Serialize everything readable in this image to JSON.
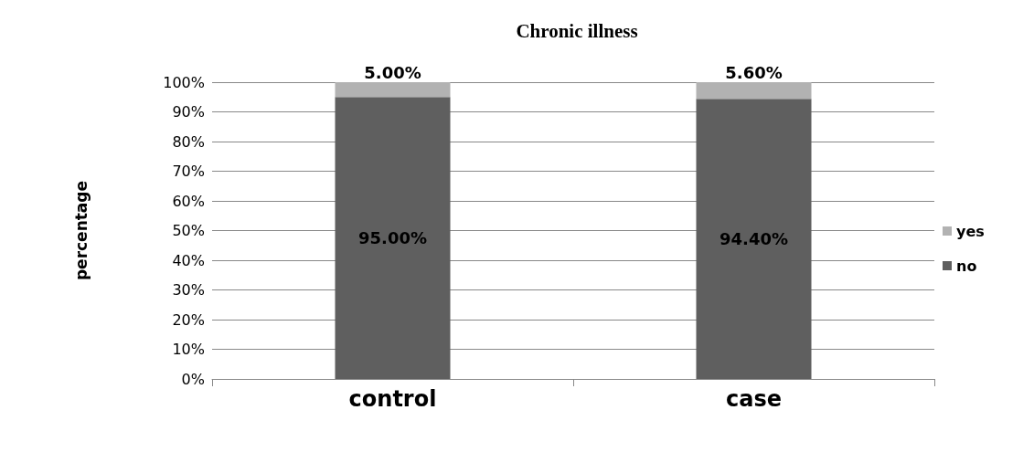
{
  "chart_data": {
    "type": "bar",
    "title": "Chronic illness",
    "ylabel": "percentage",
    "categories": [
      "control",
      "case"
    ],
    "stacked": true,
    "series": [
      {
        "name": "no",
        "color": "#5f5f5f",
        "values": [
          95.0,
          94.4
        ],
        "value_labels": [
          "95.00%",
          "94.40%"
        ]
      },
      {
        "name": "yes",
        "color": "#b2b2b2",
        "values": [
          5.0,
          5.6
        ],
        "value_labels": [
          "5.00%",
          "5.60%"
        ]
      }
    ],
    "ylim": [
      0,
      100
    ],
    "yticks": [
      {
        "value": 0,
        "label": "0%"
      },
      {
        "value": 10,
        "label": "10%"
      },
      {
        "value": 20,
        "label": "20%"
      },
      {
        "value": 30,
        "label": "30%"
      },
      {
        "value": 40,
        "label": "40%"
      },
      {
        "value": 50,
        "label": "50%"
      },
      {
        "value": 60,
        "label": "60%"
      },
      {
        "value": 70,
        "label": "70%"
      },
      {
        "value": 80,
        "label": "80%"
      },
      {
        "value": 90,
        "label": "90%"
      },
      {
        "value": 100,
        "label": "100%"
      }
    ],
    "grid": "y",
    "legend": "right"
  }
}
